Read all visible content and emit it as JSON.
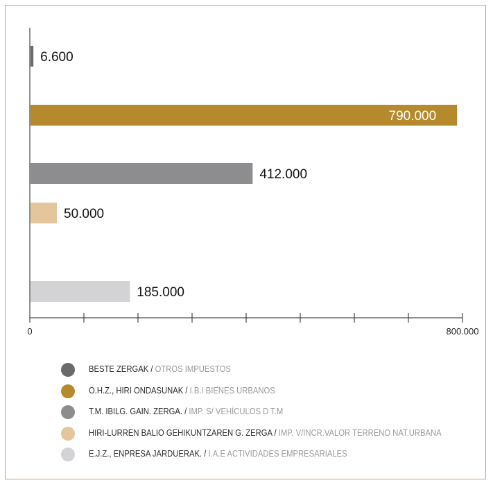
{
  "colors": {
    "border": "#d5a062",
    "axis": "#222222",
    "label": "#111111"
  },
  "chart_data": {
    "type": "bar",
    "orientation": "horizontal",
    "categories": [
      "BESTE ZERGAK / OTROS IMPUESTOS",
      "O.H.Z., HIRI ONDASUNAK / I.B.I BIENES URBANOS",
      "T.M. IBILG. GAIN. ZERGA. / IMP. S/ VEHÍCULOS D T.M",
      "HIRI-LURREN BALIO GEHIKUNTZAREN G. ZERGA / IMP. V/INCR.VALOR TERRENO NAT.URBANA",
      "E.J.Z., ENPRESA JARDUERAK. / I.A.E ACTIVIDADES EMPRESARIALES"
    ],
    "values": [
      6600,
      790000,
      412000,
      50000,
      185000
    ],
    "value_labels": [
      "6.600",
      "790.000",
      "412.000",
      "50.000",
      "185.000"
    ],
    "colors": [
      "#6a6a6a",
      "#b6892c",
      "#8d8d8f",
      "#e5c59c",
      "#d3d3d5"
    ],
    "xlim": [
      0,
      800000
    ],
    "x_ticks": [
      0,
      100000,
      200000,
      300000,
      400000,
      500000,
      600000,
      700000,
      800000
    ],
    "x_tick_labels": [
      "0",
      "",
      "",
      "",
      "",
      "",
      "",
      "",
      "800.000"
    ],
    "title": "",
    "xlabel": "",
    "ylabel": "",
    "grid": false,
    "legend_position": "bottom",
    "label_inside_bar": [
      false,
      true,
      false,
      false,
      false
    ]
  },
  "legend": [
    {
      "eu": "BESTE ZERGAK /",
      "es": "OTROS IMPUESTOS",
      "color": "#6a6a6a"
    },
    {
      "eu": "O.H.Z., HIRI ONDASUNAK /",
      "es": "I.B.I BIENES URBANOS",
      "color": "#b6892c"
    },
    {
      "eu": "T.M. IBILG. GAIN. ZERGA. /",
      "es": "IMP. S/ VEHÍCULOS D T.M",
      "color": "#8d8d8f"
    },
    {
      "eu": "HIRI-LURREN BALIO GEHIKUNTZAREN G. ZERGA /",
      "es": "IMP. V/INCR.VALOR TERRENO NAT.URBANA",
      "color": "#e5c59c"
    },
    {
      "eu": "E.J.Z., ENPRESA JARDUERAK. /",
      "es": "I.A.E ACTIVIDADES EMPRESARIALES",
      "color": "#d3d3d5"
    }
  ]
}
